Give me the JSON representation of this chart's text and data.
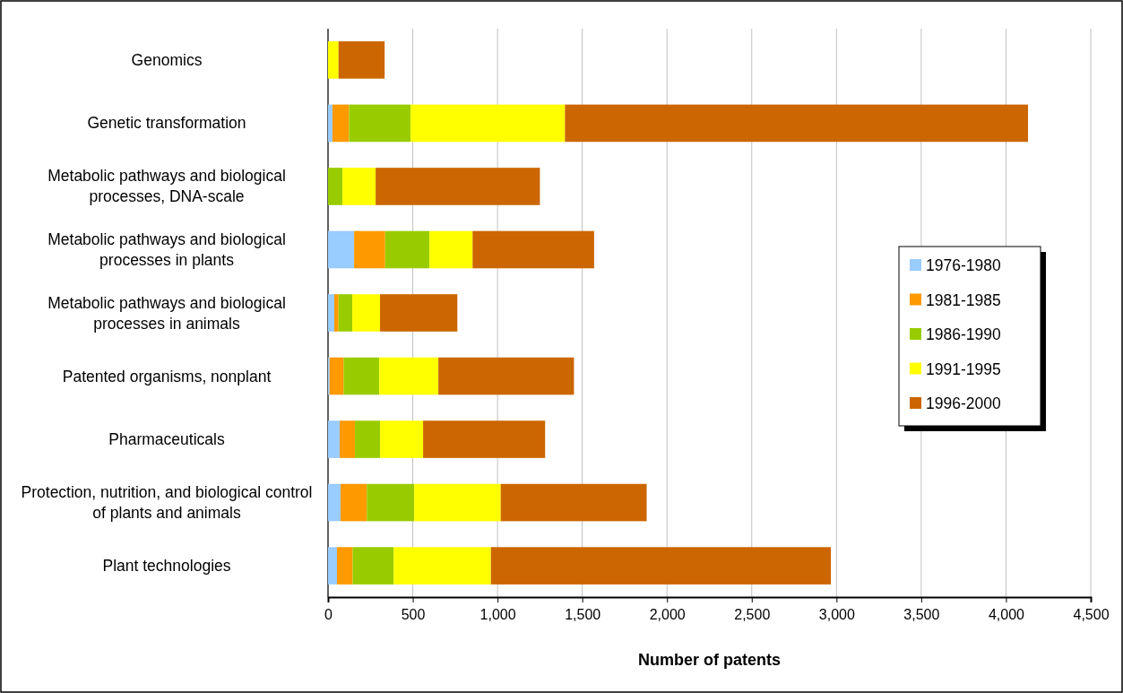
{
  "chart_data": {
    "type": "bar",
    "orientation": "horizontal",
    "stacked": true,
    "xlabel": "Number of patents",
    "categories": [
      "Genomics",
      "Genetic transformation",
      "Metabolic pathways and biological processes, DNA-scale",
      "Metabolic pathways and biological processes in plants",
      "Metabolic pathways and biological processes in animals",
      "Patented organisms, nonplant",
      "Pharmaceuticals",
      "Protection, nutrition, and biological control of plants and animals",
      "Plant technologies"
    ],
    "series": [
      {
        "name": "1976-1980",
        "color": "#99ccff",
        "values": [
          0,
          26,
          0,
          154,
          37,
          9,
          69,
          74,
          53
        ]
      },
      {
        "name": "1981-1985",
        "color": "#ff9900",
        "values": [
          0,
          98,
          0,
          183,
          25,
          83,
          90,
          155,
          92
        ]
      },
      {
        "name": "1986-1990",
        "color": "#99cc00",
        "values": [
          0,
          363,
          85,
          261,
          81,
          210,
          148,
          279,
          242
        ]
      },
      {
        "name": "1991-1995",
        "color": "#ffff00",
        "values": [
          62,
          911,
          196,
          255,
          164,
          349,
          254,
          511,
          574
        ]
      },
      {
        "name": "1996-2000",
        "color": "#cc6600",
        "values": [
          272,
          2732,
          969,
          717,
          456,
          800,
          720,
          861,
          2006
        ]
      }
    ],
    "xlim": [
      0,
      4500
    ],
    "xticks": [
      0,
      500,
      {
        "value": 1000,
        "label": "1,000"
      },
      {
        "value": 1500,
        "label": "1,500"
      },
      {
        "value": 2000,
        "label": "2,000"
      },
      {
        "value": 2500,
        "label": "2,500"
      },
      {
        "value": 3000,
        "label": "3,000"
      },
      {
        "value": 3500,
        "label": "3,500"
      },
      {
        "value": 4000,
        "label": "4,000"
      },
      {
        "value": 4500,
        "label": "4,500"
      }
    ],
    "grid": "x",
    "legend": "right"
  }
}
